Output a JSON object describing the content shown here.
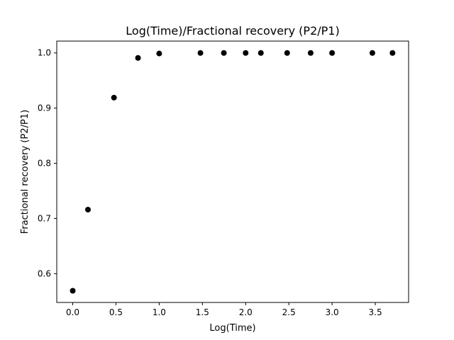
{
  "chart_data": {
    "type": "scatter",
    "title": "Log(Time)/Fractional recovery (P2/P1)",
    "xlabel": "Log(Time)",
    "ylabel": "Fractional recovery (P2/P1)",
    "xlim": [
      -0.185,
      3.885
    ],
    "ylim": [
      0.5478,
      1.0215
    ],
    "xticks": [
      0.0,
      0.5,
      1.0,
      1.5,
      2.0,
      2.5,
      3.0,
      3.5
    ],
    "xtick_labels": [
      "0.0",
      "0.5",
      "1.0",
      "1.5",
      "2.0",
      "2.5",
      "3.0",
      "3.5"
    ],
    "yticks": [
      0.6,
      0.7,
      0.8,
      0.9,
      1.0
    ],
    "ytick_labels": [
      "0.6",
      "0.7",
      "0.8",
      "0.9",
      "1.0"
    ],
    "grid": false,
    "marker_color": "#000000",
    "series": [
      {
        "x": [
          0.0,
          0.176,
          0.477,
          0.755,
          1.0,
          1.477,
          1.748,
          2.0,
          2.176,
          2.48,
          2.752,
          3.0,
          3.466,
          3.699
        ],
        "y": [
          0.569,
          0.716,
          0.919,
          0.991,
          0.999,
          1.0,
          1.0,
          1.0,
          1.0,
          1.0,
          1.0,
          1.0,
          1.0,
          1.0
        ]
      }
    ]
  }
}
